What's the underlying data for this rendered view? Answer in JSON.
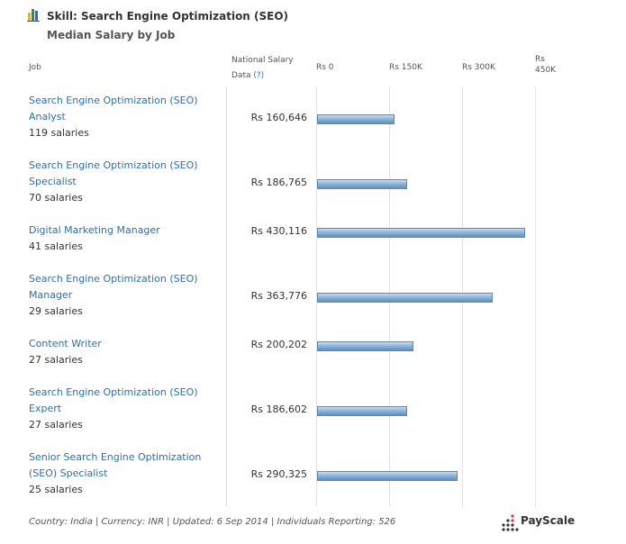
{
  "header": {
    "title": "Skill: Search Engine Optimization (SEO)",
    "subtitle": "Median Salary by Job"
  },
  "columns": {
    "job": "Job",
    "national_line1": "National Salary",
    "national_line2": "Data",
    "help": "(?)"
  },
  "chart_data": {
    "type": "bar",
    "orientation": "horizontal",
    "title": "Median Salary by Job",
    "xlim": [
      0,
      450000
    ],
    "ticks": [
      {
        "value": 0,
        "line1": "Rs 0",
        "line2": ""
      },
      {
        "value": 150000,
        "line1": "Rs 150K",
        "line2": ""
      },
      {
        "value": 300000,
        "line1": "Rs 300K",
        "line2": ""
      },
      {
        "value": 450000,
        "line1": "Rs",
        "line2": "450K"
      }
    ],
    "grid": true,
    "rows": [
      {
        "job_line1": "Search Engine Optimization (SEO)",
        "job_line2": "Analyst",
        "count": "119 salaries",
        "label": "Rs 160,646",
        "value": 160646
      },
      {
        "job_line1": "Search Engine Optimization (SEO)",
        "job_line2": "Specialist",
        "count": "70 salaries",
        "label": "Rs 186,765",
        "value": 186765
      },
      {
        "job_line1": "Digital Marketing Manager",
        "job_line2": "",
        "count": "41 salaries",
        "label": "Rs 430,116",
        "value": 430116
      },
      {
        "job_line1": "Search Engine Optimization (SEO)",
        "job_line2": "Manager",
        "count": "29 salaries",
        "label": "Rs 363,776",
        "value": 363776
      },
      {
        "job_line1": "Content Writer",
        "job_line2": "",
        "count": "27 salaries",
        "label": "Rs 200,202",
        "value": 200202
      },
      {
        "job_line1": "Search Engine Optimization (SEO)",
        "job_line2": "Expert",
        "count": "27 salaries",
        "label": "Rs 186,602",
        "value": 186602
      },
      {
        "job_line1": "Senior Search Engine Optimization",
        "job_line2": "(SEO) Specialist",
        "count": "25 salaries",
        "label": "Rs 290,325",
        "value": 290325
      }
    ]
  },
  "footer": {
    "text": "Country: India | Currency: INR | Updated: 6 Sep 2014 | Individuals Reporting: 526"
  },
  "brand": {
    "name": "PayScale",
    "logo_icon": "bar-chart-icon",
    "brand_icon": "dots-logo-icon"
  },
  "colors": {
    "link": "#2a6ebb",
    "bar": "#8fb6d9",
    "bar_border": "#5e88b0",
    "brand_accent": "#e8322f"
  }
}
